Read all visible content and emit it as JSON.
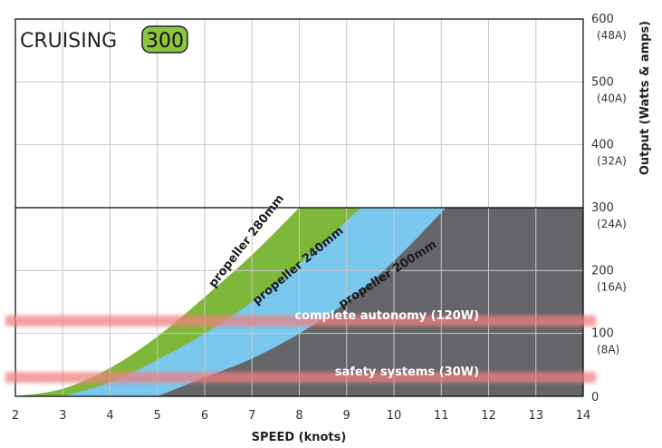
{
  "logo": {
    "text": "CRUISING",
    "model": "300",
    "badge_color": "#8cc63f"
  },
  "chart_data": {
    "type": "area",
    "title": "",
    "xlabel": "SPEED (knots)",
    "ylabel": "Output (Watts & amps)",
    "xlim": [
      2,
      14
    ],
    "ylim": [
      0,
      600
    ],
    "x_ticks": [
      "2",
      "3",
      "4",
      "5",
      "6",
      "7",
      "8",
      "9",
      "10",
      "11",
      "12",
      "13",
      "14"
    ],
    "y_ticks": [
      {
        "value": 0,
        "label": "0",
        "sub": ""
      },
      {
        "value": 100,
        "label": "100",
        "sub": "(8A)"
      },
      {
        "value": 200,
        "label": "200",
        "sub": "(16A)"
      },
      {
        "value": 300,
        "label": "300",
        "sub": "(24A)"
      },
      {
        "value": 400,
        "label": "400",
        "sub": "(32A)"
      },
      {
        "value": 500,
        "label": "500",
        "sub": "(40A)"
      },
      {
        "value": 600,
        "label": "600",
        "sub": "(48A)"
      }
    ],
    "grid": true,
    "max_output_w": 300,
    "max_output_color": "#636569",
    "series": [
      {
        "name": "propeller 280mm",
        "color": "#7db83a",
        "points": [
          [
            2,
            0
          ],
          [
            3,
            12
          ],
          [
            4,
            45
          ],
          [
            5,
            95
          ],
          [
            6,
            158
          ],
          [
            7,
            225
          ],
          [
            8,
            300
          ]
        ]
      },
      {
        "name": "propeller 240mm",
        "color": "#7ac8ee",
        "points": [
          [
            3,
            0
          ],
          [
            4,
            22
          ],
          [
            5,
            58
          ],
          [
            6,
            100
          ],
          [
            7,
            150
          ],
          [
            8,
            210
          ],
          [
            9.3,
            300
          ]
        ]
      },
      {
        "name": "propeller 200mm",
        "color": "#636569",
        "points": [
          [
            5,
            0
          ],
          [
            6,
            30
          ],
          [
            7,
            60
          ],
          [
            8,
            100
          ],
          [
            9,
            150
          ],
          [
            10,
            215
          ],
          [
            11.1,
            300
          ]
        ]
      }
    ],
    "annotations": [
      {
        "label": "complete autonomy (120W)",
        "value": 120,
        "color": "#f08080"
      },
      {
        "label": "safety systems (30W)",
        "value": 30,
        "color": "#f08080"
      }
    ]
  }
}
